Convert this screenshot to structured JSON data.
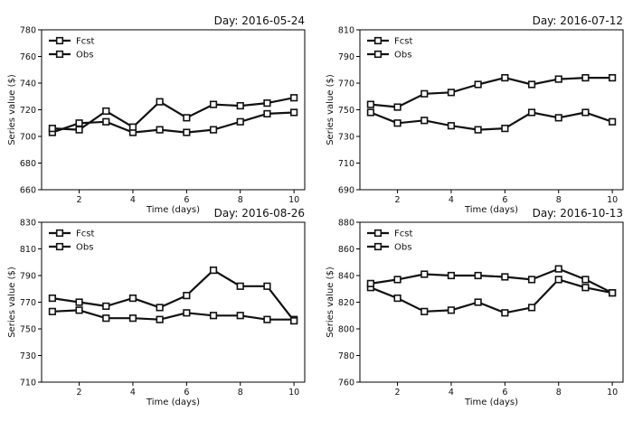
{
  "chart_data": [
    {
      "type": "line",
      "title": "Day: 2016-05-24",
      "xlabel": "Time (days)",
      "ylabel": "Series value ($)",
      "x": [
        1,
        2,
        3,
        4,
        5,
        6,
        7,
        8,
        9,
        10
      ],
      "xticks": [
        2,
        4,
        6,
        8,
        10
      ],
      "xlim": [
        0.6,
        10.4
      ],
      "ylim": [
        660,
        780
      ],
      "yticks": [
        660,
        680,
        700,
        720,
        740,
        760,
        780
      ],
      "legend": "top-left",
      "series": [
        {
          "name": "Fcst",
          "values": [
            703,
            710,
            711,
            703,
            705,
            703,
            705,
            711,
            717,
            718
          ]
        },
        {
          "name": "Obs",
          "values": [
            706,
            705,
            719,
            707,
            726,
            714,
            724,
            723,
            725,
            729
          ]
        }
      ]
    },
    {
      "type": "line",
      "title": "Day: 2016-07-12",
      "xlabel": "Time (days)",
      "ylabel": "Series value ($)",
      "x": [
        1,
        2,
        3,
        4,
        5,
        6,
        7,
        8,
        9,
        10
      ],
      "xticks": [
        2,
        4,
        6,
        8,
        10
      ],
      "xlim": [
        0.6,
        10.4
      ],
      "ylim": [
        690,
        810
      ],
      "yticks": [
        690,
        710,
        730,
        750,
        770,
        790,
        810
      ],
      "legend": "top-left",
      "series": [
        {
          "name": "Fcst",
          "values": [
            748,
            740,
            742,
            738,
            735,
            736,
            748,
            744,
            748,
            741
          ]
        },
        {
          "name": "Obs",
          "values": [
            754,
            752,
            762,
            763,
            769,
            774,
            769,
            773,
            774,
            774
          ]
        }
      ]
    },
    {
      "type": "line",
      "title": "Day: 2016-08-26",
      "xlabel": "Time (days)",
      "ylabel": "Series value ($)",
      "x": [
        1,
        2,
        3,
        4,
        5,
        6,
        7,
        8,
        9,
        10
      ],
      "xticks": [
        2,
        4,
        6,
        8,
        10
      ],
      "xlim": [
        0.6,
        10.4
      ],
      "ylim": [
        710,
        830
      ],
      "yticks": [
        710,
        730,
        750,
        770,
        790,
        810,
        830
      ],
      "legend": "top-left",
      "series": [
        {
          "name": "Fcst",
          "values": [
            763,
            764,
            758,
            758,
            757,
            762,
            760,
            760,
            757,
            757
          ]
        },
        {
          "name": "Obs",
          "values": [
            773,
            770,
            767,
            773,
            766,
            775,
            794,
            782,
            782,
            756
          ]
        }
      ]
    },
    {
      "type": "line",
      "title": "Day: 2016-10-13",
      "xlabel": "Time (days)",
      "ylabel": "Series value ($)",
      "x": [
        1,
        2,
        3,
        4,
        5,
        6,
        7,
        8,
        9,
        10
      ],
      "xticks": [
        2,
        4,
        6,
        8,
        10
      ],
      "xlim": [
        0.6,
        10.4
      ],
      "ylim": [
        760,
        880
      ],
      "yticks": [
        760,
        780,
        800,
        820,
        840,
        860,
        880
      ],
      "legend": "top-left",
      "series": [
        {
          "name": "Fcst",
          "values": [
            831,
            823,
            813,
            814,
            820,
            812,
            816,
            837,
            831,
            827
          ]
        },
        {
          "name": "Obs",
          "values": [
            834,
            837,
            841,
            840,
            840,
            839,
            837,
            845,
            837,
            827
          ]
        }
      ]
    }
  ],
  "style": {
    "line_color": "#111111",
    "marker_fill": "#ffffff",
    "axis_color": "#000000"
  }
}
